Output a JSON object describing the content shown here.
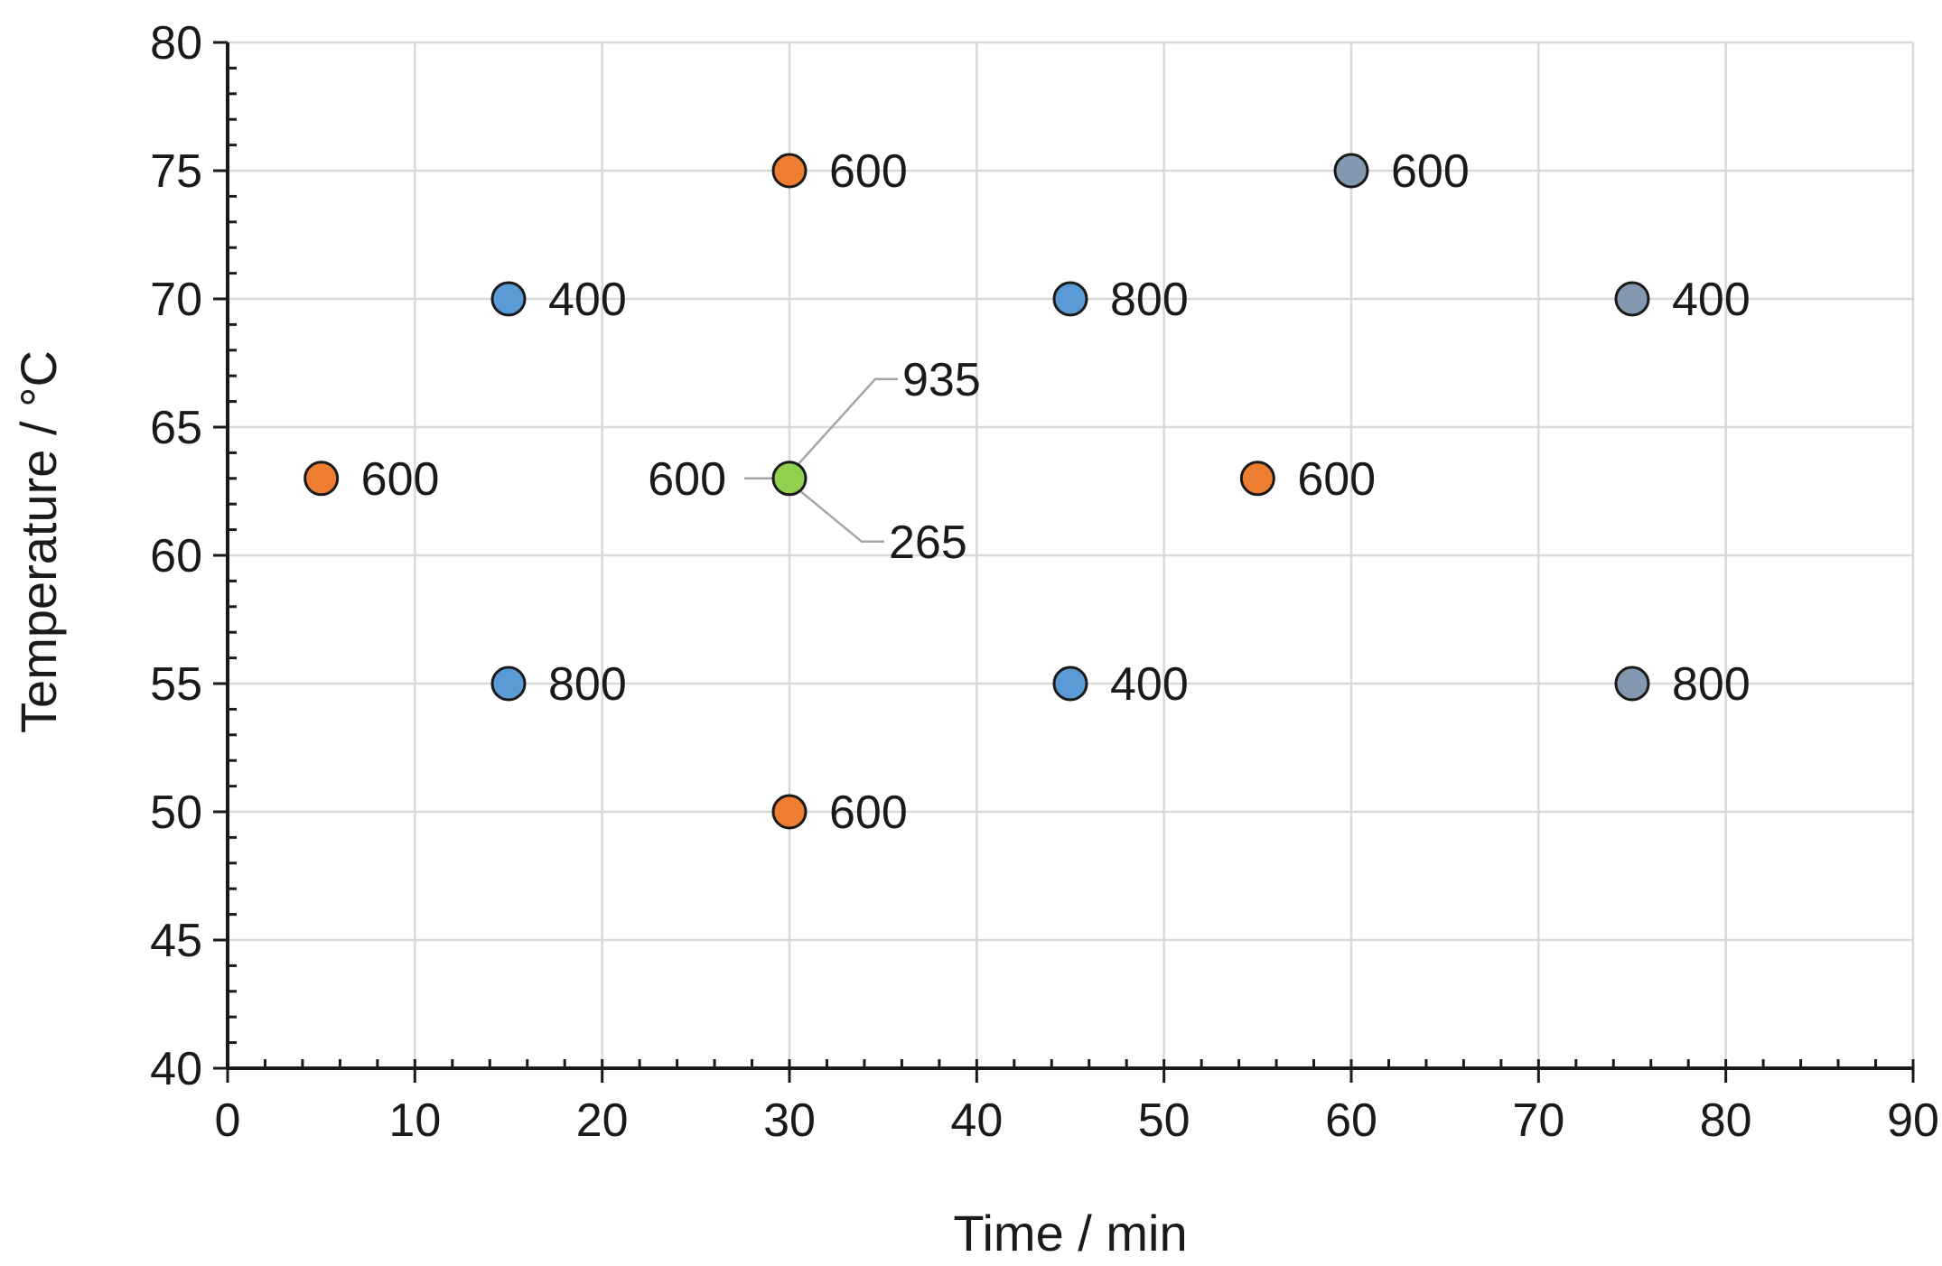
{
  "chart_data": {
    "type": "scatter",
    "title": "",
    "xlabel": "Time / min",
    "ylabel": "Temperature / °C",
    "xlim": [
      0,
      90
    ],
    "ylim": [
      40,
      80
    ],
    "x_ticks": [
      0,
      10,
      20,
      30,
      40,
      50,
      60,
      70,
      80,
      90
    ],
    "y_ticks": [
      40,
      45,
      50,
      55,
      60,
      65,
      70,
      75,
      80
    ],
    "grid": true,
    "legend": "none",
    "colors": {
      "blue": "#5b9bd5",
      "orange": "#ed7d31",
      "gray": "#8497b0",
      "green": "#92d050"
    },
    "points": [
      {
        "x": 15,
        "y": 70,
        "label": "400",
        "color": "blue"
      },
      {
        "x": 45,
        "y": 70,
        "label": "800",
        "color": "blue"
      },
      {
        "x": 15,
        "y": 55,
        "label": "800",
        "color": "blue"
      },
      {
        "x": 45,
        "y": 55,
        "label": "400",
        "color": "blue"
      },
      {
        "x": 30,
        "y": 75,
        "label": "600",
        "color": "orange"
      },
      {
        "x": 5,
        "y": 63,
        "label": "600",
        "color": "orange"
      },
      {
        "x": 55,
        "y": 63,
        "label": "600",
        "color": "orange"
      },
      {
        "x": 30,
        "y": 50,
        "label": "600",
        "color": "orange"
      },
      {
        "x": 60,
        "y": 75,
        "label": "600",
        "color": "gray"
      },
      {
        "x": 75,
        "y": 70,
        "label": "400",
        "color": "gray"
      },
      {
        "x": 75,
        "y": 55,
        "label": "800",
        "color": "gray"
      },
      {
        "x": 30,
        "y": 63,
        "label": "600",
        "color": "green"
      }
    ],
    "center_point_labels": [
      "935",
      "600",
      "265"
    ]
  }
}
